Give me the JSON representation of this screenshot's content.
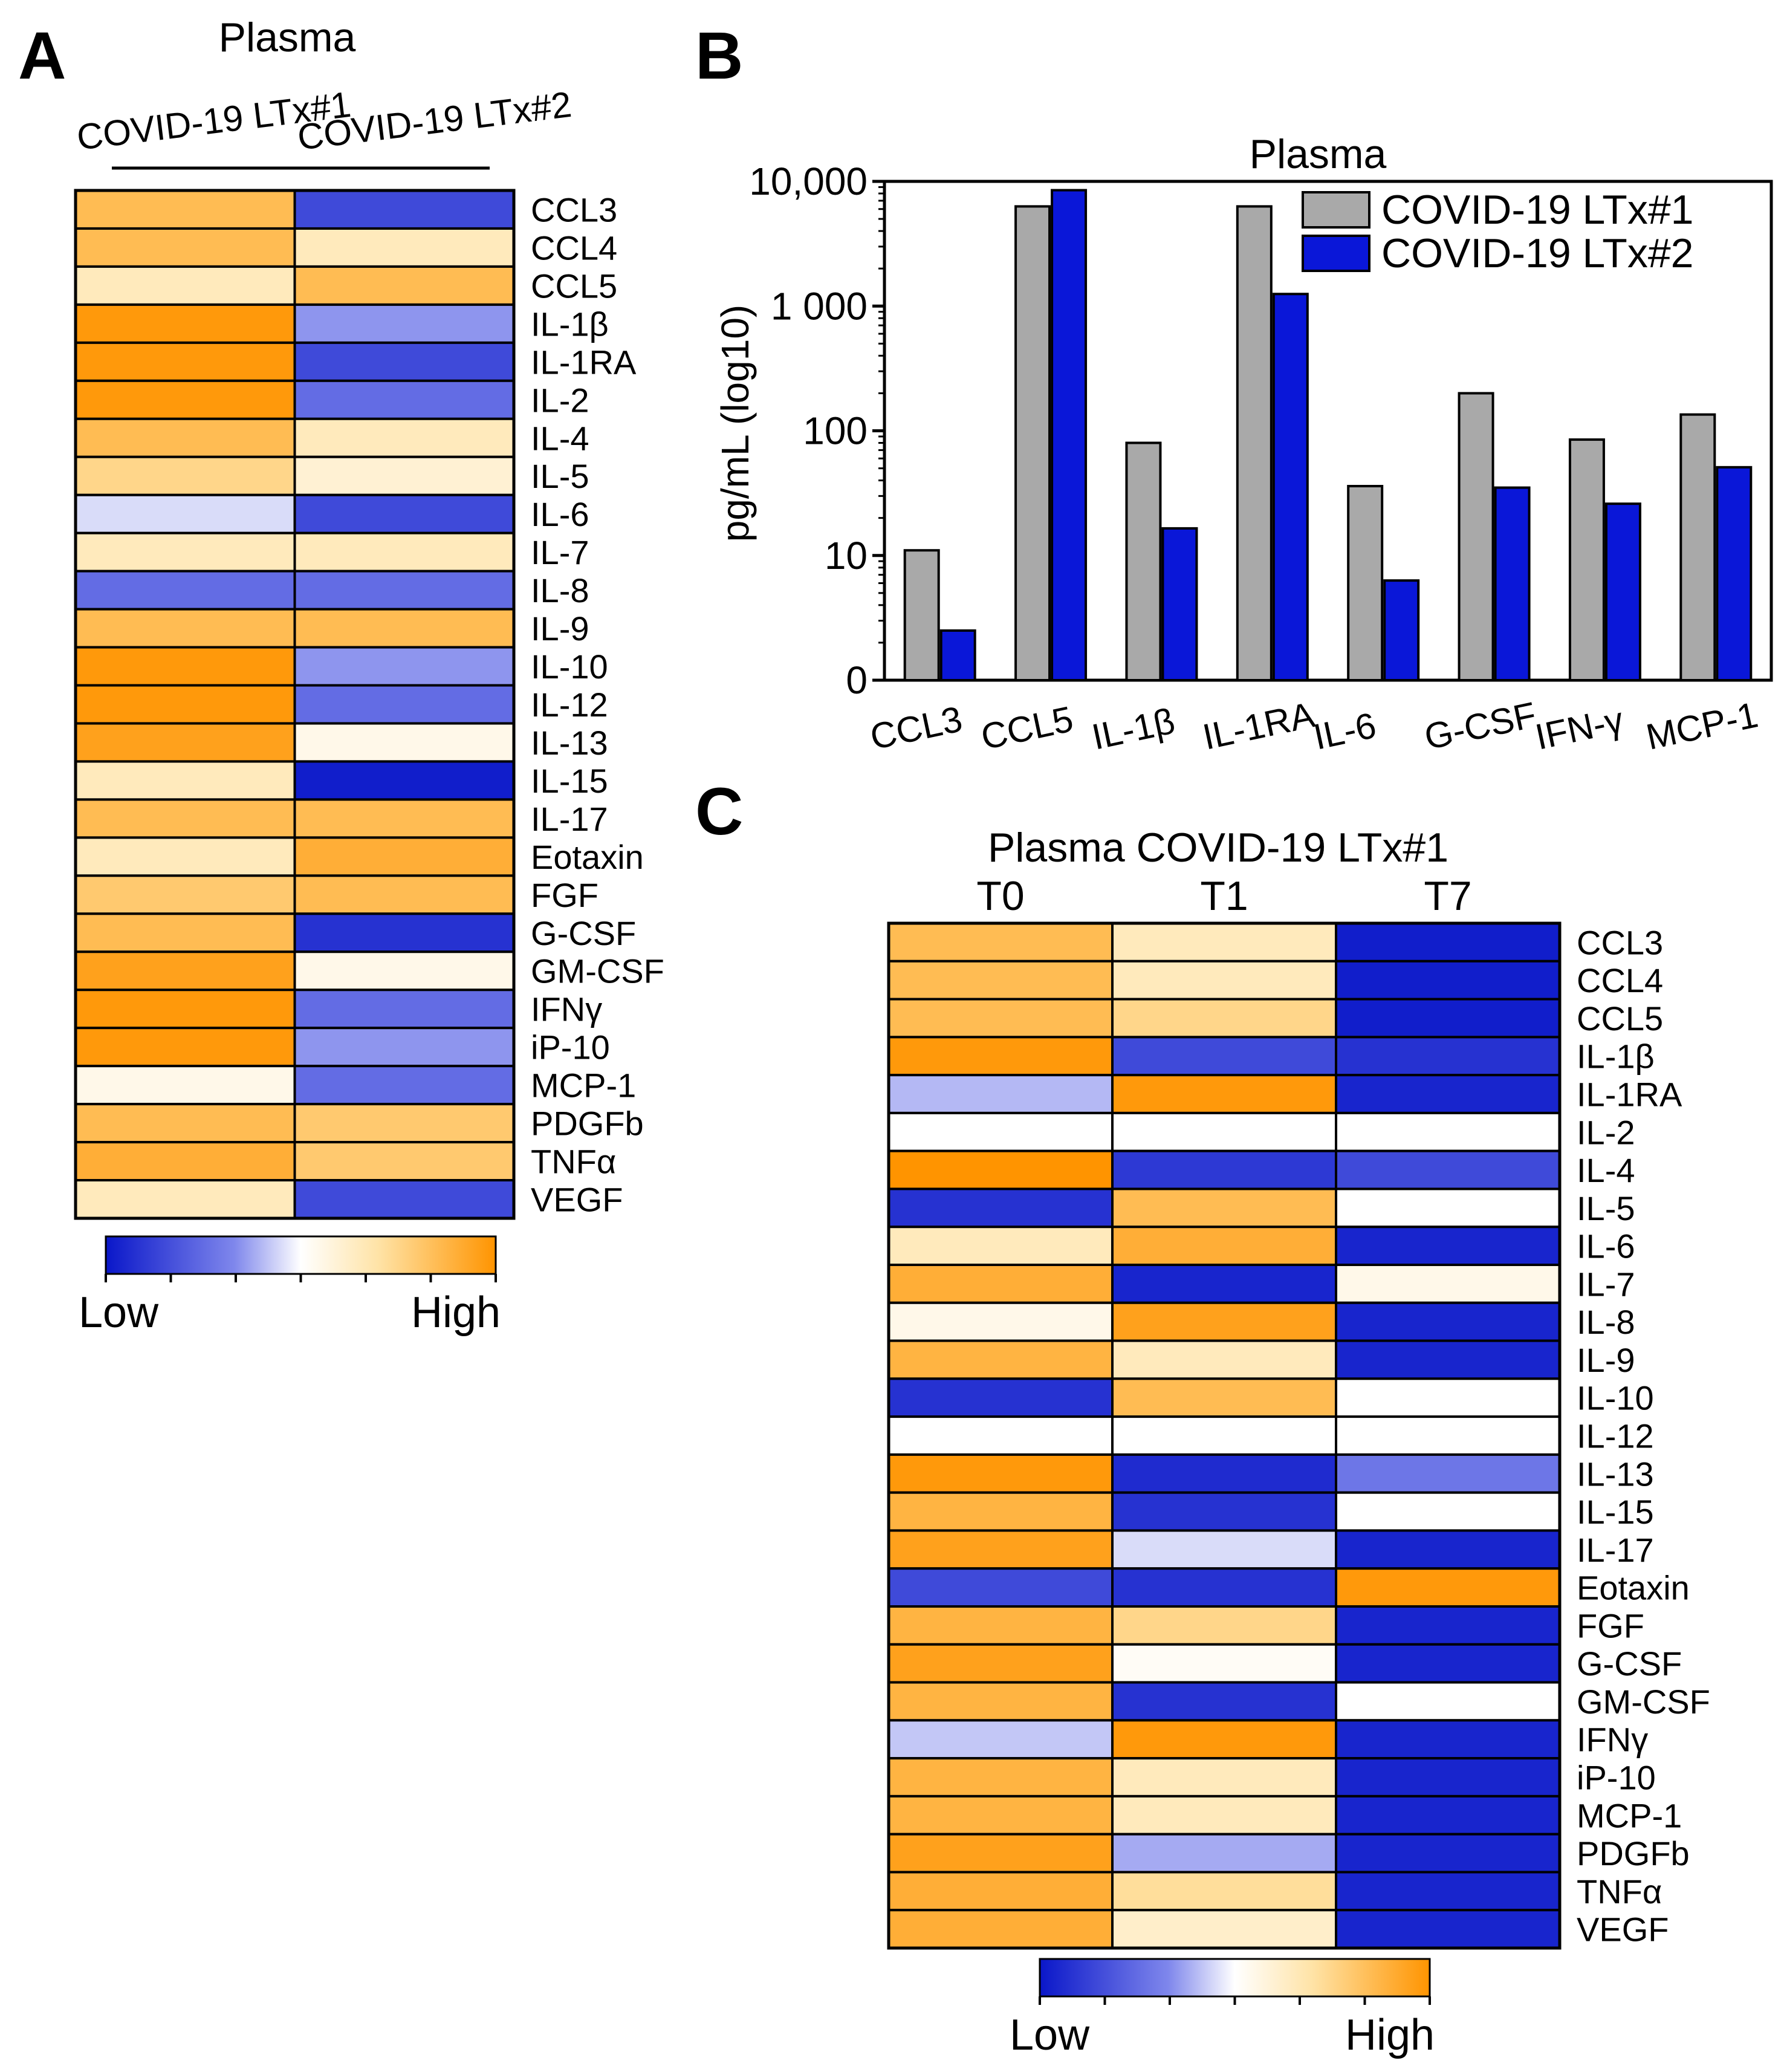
{
  "panels": {
    "A": {
      "letter": "A",
      "title": "Plasma",
      "columns": [
        "COVID-19 LTx#1",
        "COVID-19 LTx#2"
      ],
      "colorbar": {
        "low_label": "Low",
        "high_label": "High"
      },
      "rows": [
        {
          "label": "CCL3",
          "values": [
            0.85,
            0.15
          ]
        },
        {
          "label": "CCL4",
          "values": [
            0.85,
            0.65
          ]
        },
        {
          "label": "CCL5",
          "values": [
            0.65,
            0.85
          ]
        },
        {
          "label": "IL-1β",
          "values": [
            0.98,
            0.35
          ]
        },
        {
          "label": "IL-1RA",
          "values": [
            0.98,
            0.15
          ]
        },
        {
          "label": "IL-2",
          "values": [
            0.98,
            0.25
          ]
        },
        {
          "label": "IL-4",
          "values": [
            0.85,
            0.65
          ]
        },
        {
          "label": "IL-5",
          "values": [
            0.75,
            0.6
          ]
        },
        {
          "label": "IL-6",
          "values": [
            0.45,
            0.15
          ]
        },
        {
          "label": "IL-7",
          "values": [
            0.65,
            0.65
          ]
        },
        {
          "label": "IL-8",
          "values": [
            0.25,
            0.25
          ]
        },
        {
          "label": "IL-9",
          "values": [
            0.85,
            0.85
          ]
        },
        {
          "label": "IL-10",
          "values": [
            0.98,
            0.35
          ]
        },
        {
          "label": "IL-12",
          "values": [
            0.98,
            0.25
          ]
        },
        {
          "label": "IL-13",
          "values": [
            0.95,
            0.55
          ]
        },
        {
          "label": "IL-15",
          "values": [
            0.65,
            0.02
          ]
        },
        {
          "label": "IL-17",
          "values": [
            0.85,
            0.85
          ]
        },
        {
          "label": "Eotaxin",
          "values": [
            0.65,
            0.9
          ]
        },
        {
          "label": "FGF",
          "values": [
            0.8,
            0.85
          ]
        },
        {
          "label": "G-CSF",
          "values": [
            0.85,
            0.08
          ]
        },
        {
          "label": "GM-CSF",
          "values": [
            0.95,
            0.55
          ]
        },
        {
          "label": "IFNγ",
          "values": [
            0.98,
            0.25
          ]
        },
        {
          "label": "iP-10",
          "values": [
            0.98,
            0.35
          ]
        },
        {
          "label": "MCP-1",
          "values": [
            0.55,
            0.25
          ]
        },
        {
          "label": "PDGFb",
          "values": [
            0.85,
            0.8
          ]
        },
        {
          "label": "TNFα",
          "values": [
            0.9,
            0.8
          ]
        },
        {
          "label": "VEGF",
          "values": [
            0.65,
            0.15
          ]
        }
      ]
    },
    "B": {
      "letter": "B",
      "title": "Plasma",
      "ylabel": "pg/mL  (log10)",
      "yticks": [
        "0",
        "10",
        "100",
        "1 000",
        "10,000"
      ],
      "series": [
        {
          "name": "COVID-19 LTx#1",
          "color": "#a9a9a9",
          "values": [
            11,
            6300,
            80,
            6300,
            36,
            200,
            85,
            135
          ]
        },
        {
          "name": "COVID-19 LTx#2",
          "color": "#0a17d8",
          "values": [
            2.5,
            8500,
            16.5,
            1250,
            6.3,
            35,
            26,
            51
          ]
        }
      ],
      "categories": [
        "CCL3",
        "CCL5",
        "IL-1β",
        "IL-1RA",
        "IL-6",
        "G-CSF",
        "IFN-γ",
        "MCP-1"
      ]
    },
    "C": {
      "letter": "C",
      "title": "Plasma COVID-19 LTx#1",
      "columns": [
        "T0",
        "T1",
        "T7"
      ],
      "colorbar": {
        "low_label": "Low",
        "high_label": "High"
      },
      "rows": [
        {
          "label": "CCL3",
          "values": [
            0.85,
            0.65,
            0.02
          ]
        },
        {
          "label": "CCL4",
          "values": [
            0.85,
            0.65,
            0.02
          ]
        },
        {
          "label": "CCL5",
          "values": [
            0.85,
            0.75,
            0.02
          ]
        },
        {
          "label": "IL-1β",
          "values": [
            0.98,
            0.15,
            0.08
          ]
        },
        {
          "label": "IL-1RA",
          "values": [
            0.4,
            0.98,
            0.04
          ]
        },
        {
          "label": "IL-2",
          "values": [
            0.5,
            0.5,
            0.5
          ]
        },
        {
          "label": "IL-4",
          "values": [
            1.0,
            0.1,
            0.15
          ]
        },
        {
          "label": "IL-5",
          "values": [
            0.08,
            0.85,
            0.5
          ]
        },
        {
          "label": "IL-6",
          "values": [
            0.65,
            0.9,
            0.04
          ]
        },
        {
          "label": "IL-7",
          "values": [
            0.9,
            0.04,
            0.55
          ]
        },
        {
          "label": "IL-8",
          "values": [
            0.55,
            0.95,
            0.04
          ]
        },
        {
          "label": "IL-9",
          "values": [
            0.88,
            0.65,
            0.04
          ]
        },
        {
          "label": "IL-10",
          "values": [
            0.08,
            0.85,
            0.5
          ]
        },
        {
          "label": "IL-12",
          "values": [
            0.5,
            0.5,
            0.5
          ]
        },
        {
          "label": "IL-13",
          "values": [
            0.98,
            0.06,
            0.28
          ]
        },
        {
          "label": "IL-15",
          "values": [
            0.88,
            0.08,
            0.5
          ]
        },
        {
          "label": "IL-17",
          "values": [
            0.95,
            0.45,
            0.04
          ]
        },
        {
          "label": "Eotaxin",
          "values": [
            0.15,
            0.08,
            0.98
          ]
        },
        {
          "label": "FGF",
          "values": [
            0.88,
            0.75,
            0.04
          ]
        },
        {
          "label": "G-CSF",
          "values": [
            0.95,
            0.52,
            0.04
          ]
        },
        {
          "label": "GM-CSF",
          "values": [
            0.88,
            0.08,
            0.5
          ]
        },
        {
          "label": "IFNγ",
          "values": [
            0.42,
            0.98,
            0.04
          ]
        },
        {
          "label": "iP-10",
          "values": [
            0.88,
            0.65,
            0.04
          ]
        },
        {
          "label": "MCP-1",
          "values": [
            0.88,
            0.65,
            0.04
          ]
        },
        {
          "label": "PDGFb",
          "values": [
            0.95,
            0.38,
            0.04
          ]
        },
        {
          "label": "TNFα",
          "values": [
            0.9,
            0.72,
            0.04
          ]
        },
        {
          "label": "VEGF",
          "values": [
            0.9,
            0.62,
            0.04
          ]
        }
      ]
    }
  },
  "chart_data": [
    {
      "type": "heatmap",
      "title": "Plasma",
      "x": [
        "COVID-19 LTx#1",
        "COVID-19 LTx#2"
      ],
      "y": [
        "CCL3",
        "CCL4",
        "CCL5",
        "IL-1β",
        "IL-1RA",
        "IL-2",
        "IL-4",
        "IL-5",
        "IL-6",
        "IL-7",
        "IL-8",
        "IL-9",
        "IL-10",
        "IL-12",
        "IL-13",
        "IL-15",
        "IL-17",
        "Eotaxin",
        "FGF",
        "G-CSF",
        "GM-CSF",
        "IFNγ",
        "iP-10",
        "MCP-1",
        "PDGFb",
        "TNFα",
        "VEGF"
      ],
      "scale": "relative (0 = Low, 1 = High)",
      "legend": [
        "Low",
        "High"
      ]
    },
    {
      "type": "bar",
      "title": "Plasma",
      "xlabel": "",
      "ylabel": "pg/mL  (log10)",
      "yscale": "log",
      "ylim": [
        1,
        10000
      ],
      "categories": [
        "CCL3",
        "CCL5",
        "IL-1β",
        "IL-1RA",
        "IL-6",
        "G-CSF",
        "IFN-γ",
        "MCP-1"
      ],
      "series": [
        {
          "name": "COVID-19 LTx#1",
          "values": [
            11,
            6300,
            80,
            6300,
            36,
            200,
            85,
            135
          ]
        },
        {
          "name": "COVID-19 LTx#2",
          "values": [
            2.5,
            8500,
            16.5,
            1250,
            6.3,
            35,
            26,
            51
          ]
        }
      ],
      "legend": "top-right"
    },
    {
      "type": "heatmap",
      "title": "Plasma COVID-19 LTx#1",
      "x": [
        "T0",
        "T1",
        "T7"
      ],
      "y": [
        "CCL3",
        "CCL4",
        "CCL5",
        "IL-1β",
        "IL-1RA",
        "IL-2",
        "IL-4",
        "IL-5",
        "IL-6",
        "IL-7",
        "IL-8",
        "IL-9",
        "IL-10",
        "IL-12",
        "IL-13",
        "IL-15",
        "IL-17",
        "Eotaxin",
        "FGF",
        "G-CSF",
        "GM-CSF",
        "IFNγ",
        "iP-10",
        "MCP-1",
        "PDGFb",
        "TNFα",
        "VEGF"
      ],
      "scale": "relative (0 = Low, 1 = High)",
      "legend": [
        "Low",
        "High"
      ]
    }
  ]
}
